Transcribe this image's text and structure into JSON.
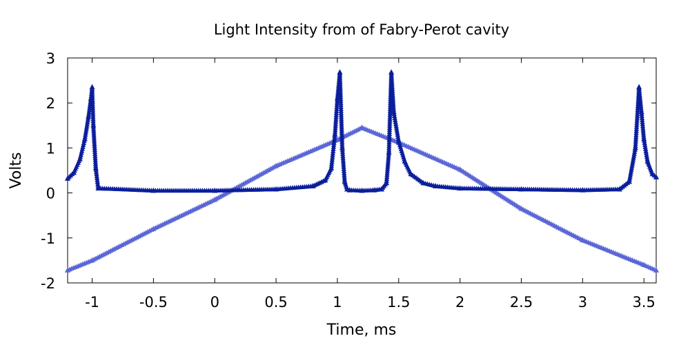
{
  "chart_data": {
    "type": "scatter",
    "title": "Light Intensity from of Fabry-Perot cavity",
    "xlabel": "Time, ms",
    "ylabel": "Volts",
    "xlim": [
      -1.2,
      3.6
    ],
    "ylim": [
      -2,
      3
    ],
    "x_ticks": [
      -1,
      -0.5,
      0,
      0.5,
      1,
      1.5,
      2,
      2.5,
      3,
      3.5
    ],
    "x_tick_labels": [
      "-1",
      "-0.5",
      "0",
      "0.5",
      "1",
      "1.5",
      "2",
      "2.5",
      "3",
      "3.5"
    ],
    "y_ticks": [
      -2,
      -1,
      0,
      1,
      2,
      3
    ],
    "y_tick_labels": [
      "-2",
      "-1",
      "0",
      "1",
      "2",
      "3"
    ],
    "grid": false,
    "legend": "none",
    "marker": "triangle",
    "series": [
      {
        "color": "#5b67d6",
        "x": [
          -1.2,
          -1.0,
          -0.5,
          0.0,
          0.5,
          1.0,
          1.2,
          1.5,
          2.0,
          2.5,
          3.0,
          3.5,
          3.6
        ],
        "values": [
          -1.72,
          -1.5,
          -0.8,
          -0.15,
          0.6,
          1.18,
          1.45,
          1.12,
          0.52,
          -0.35,
          -1.05,
          -1.6,
          -1.72
        ]
      },
      {
        "color": "#0b1f9c",
        "x": [
          -1.2,
          -1.15,
          -1.1,
          -1.06,
          -1.03,
          -1.01,
          -1.0,
          -0.99,
          -0.97,
          -0.95,
          -0.5,
          0.0,
          0.5,
          0.8,
          0.9,
          0.95,
          0.98,
          1.0,
          1.02,
          1.04,
          1.06,
          1.08,
          1.1,
          1.2,
          1.3,
          1.36,
          1.4,
          1.42,
          1.44,
          1.46,
          1.5,
          1.55,
          1.6,
          1.7,
          1.8,
          2.0,
          2.5,
          3.0,
          3.3,
          3.38,
          3.43,
          3.46,
          3.48,
          3.5,
          3.53,
          3.57,
          3.6
        ],
        "values": [
          0.32,
          0.45,
          0.75,
          1.2,
          1.7,
          2.1,
          2.35,
          1.5,
          0.55,
          0.1,
          0.05,
          0.05,
          0.08,
          0.15,
          0.28,
          0.55,
          1.3,
          2.1,
          2.68,
          1.0,
          0.25,
          0.08,
          0.06,
          0.05,
          0.06,
          0.08,
          0.22,
          0.9,
          2.68,
          1.8,
          1.15,
          0.7,
          0.42,
          0.22,
          0.15,
          0.1,
          0.08,
          0.06,
          0.08,
          0.25,
          1.0,
          2.35,
          1.8,
          1.2,
          0.7,
          0.42,
          0.35
        ]
      }
    ]
  }
}
